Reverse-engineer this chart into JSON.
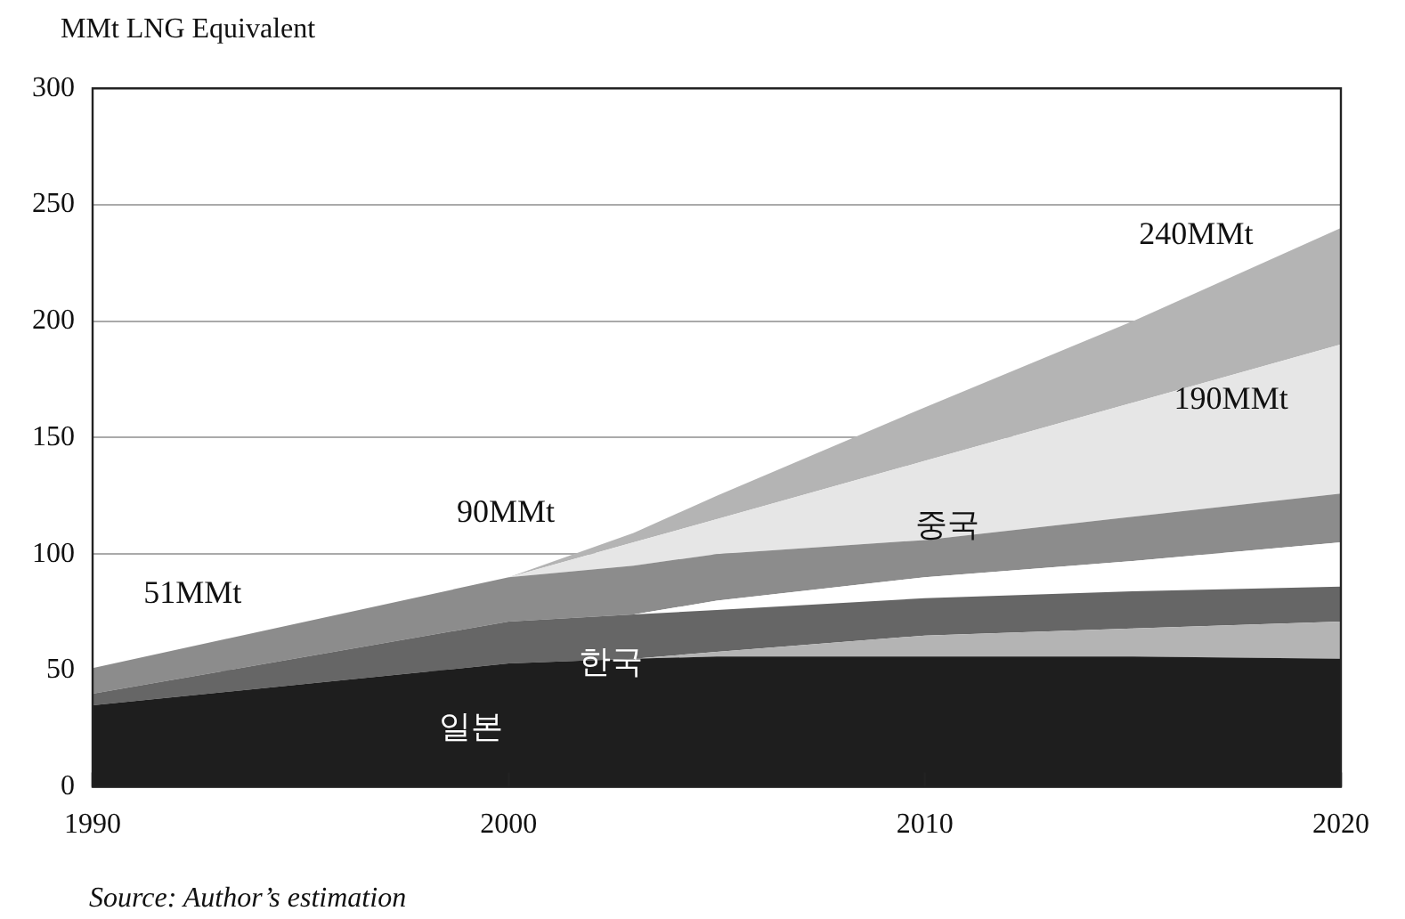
{
  "chart_data": {
    "type": "area",
    "stacked": true,
    "ylabel": "MMt LNG Equivalent",
    "x": [
      1990,
      2000,
      2003,
      2005,
      2010,
      2015,
      2020
    ],
    "series": [
      {
        "color": "#1e1e1e",
        "values": [
          35,
          53,
          55,
          56,
          56,
          56,
          55
        ]
      },
      {
        "color": "#b4b4b4",
        "values": [
          0,
          0,
          0,
          2,
          9,
          12,
          16
        ]
      },
      {
        "color": "#666666",
        "values": [
          5,
          18,
          19,
          18,
          16,
          16,
          15
        ]
      },
      {
        "color": "#ffffff",
        "values": [
          0,
          0,
          0,
          4,
          9,
          13,
          19
        ]
      },
      {
        "color": "#8c8c8c",
        "values": [
          11,
          19,
          21,
          20,
          16,
          19,
          21
        ]
      },
      {
        "color": "#e6e6e6",
        "values": [
          0,
          0,
          10,
          15,
          34,
          49,
          64
        ]
      },
      {
        "color": "#b4b4b4",
        "values": [
          0,
          0,
          4,
          10,
          23,
          35,
          50
        ]
      }
    ],
    "xlim": [
      1990,
      2020
    ],
    "xticks": [
      1990,
      2000,
      2010,
      2020
    ],
    "ylim": [
      0,
      300
    ],
    "yticks": [
      0,
      50,
      100,
      150,
      200,
      250,
      300
    ],
    "grid": "y",
    "annotations": [
      "일본",
      "한국",
      "중국",
      "51MMt",
      "90MMt",
      "190MMt",
      "240MMt",
      "Source: Author’s estimation"
    ]
  }
}
